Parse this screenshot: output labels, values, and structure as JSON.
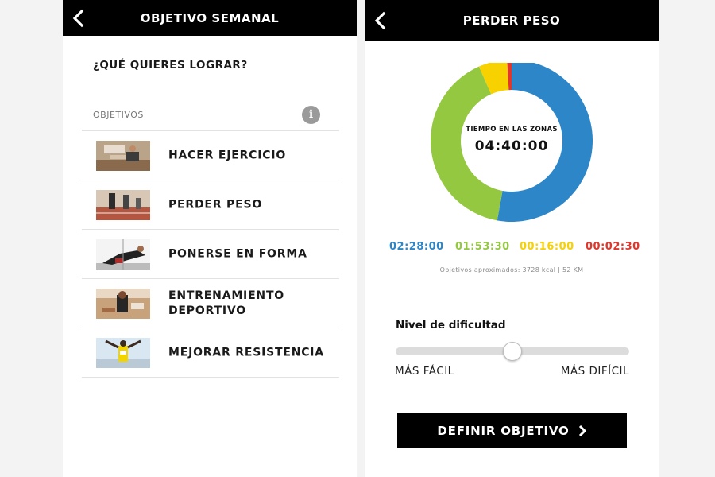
{
  "left_screen": {
    "title": "OBJETIVO SEMANAL",
    "question": "¿QUÉ QUIERES LOGRAR?",
    "section_label": "OBJETIVOS",
    "info_glyph": "i",
    "items": [
      {
        "label": "HACER EJERCICIO",
        "icon": "exercise-photo"
      },
      {
        "label": "PERDER PESO",
        "icon": "running-photo"
      },
      {
        "label": "PONERSE EN FORMA",
        "icon": "sprint-start-photo"
      },
      {
        "label": "ENTRENAMIENTO DEPORTIVO",
        "icon": "sport-training-photo"
      },
      {
        "label": "MEJORAR RESISTENCIA",
        "icon": "marathon-photo"
      }
    ]
  },
  "right_screen": {
    "title": "PERDER PESO",
    "zones_label": "TIEMPO EN LAS ZONAS",
    "total_time": "04:40:00",
    "zones": [
      {
        "time": "02:28:00",
        "minutes": 148,
        "color": "#2d86c8"
      },
      {
        "time": "01:53:30",
        "minutes": 113.5,
        "color": "#94c841"
      },
      {
        "time": "00:16:00",
        "minutes": 16,
        "color": "#f7d200"
      },
      {
        "time": "00:02:30",
        "minutes": 2.5,
        "color": "#e0362c"
      }
    ],
    "approx_text": "Objetivos aproximados: 3728 kcal | 52 KM",
    "difficulty_title": "Nivel de dificultad",
    "difficulty_level": 0.5,
    "easy_label": "MÁS FÁCIL",
    "hard_label": "MÁS DIFÍCIL",
    "cta_label": "DEFINIR OBJETIVO"
  },
  "colors": {
    "header_bg": "#000000",
    "blue": "#2d86c8",
    "green": "#94c841",
    "yellow": "#f7d200",
    "red": "#e0362c"
  }
}
